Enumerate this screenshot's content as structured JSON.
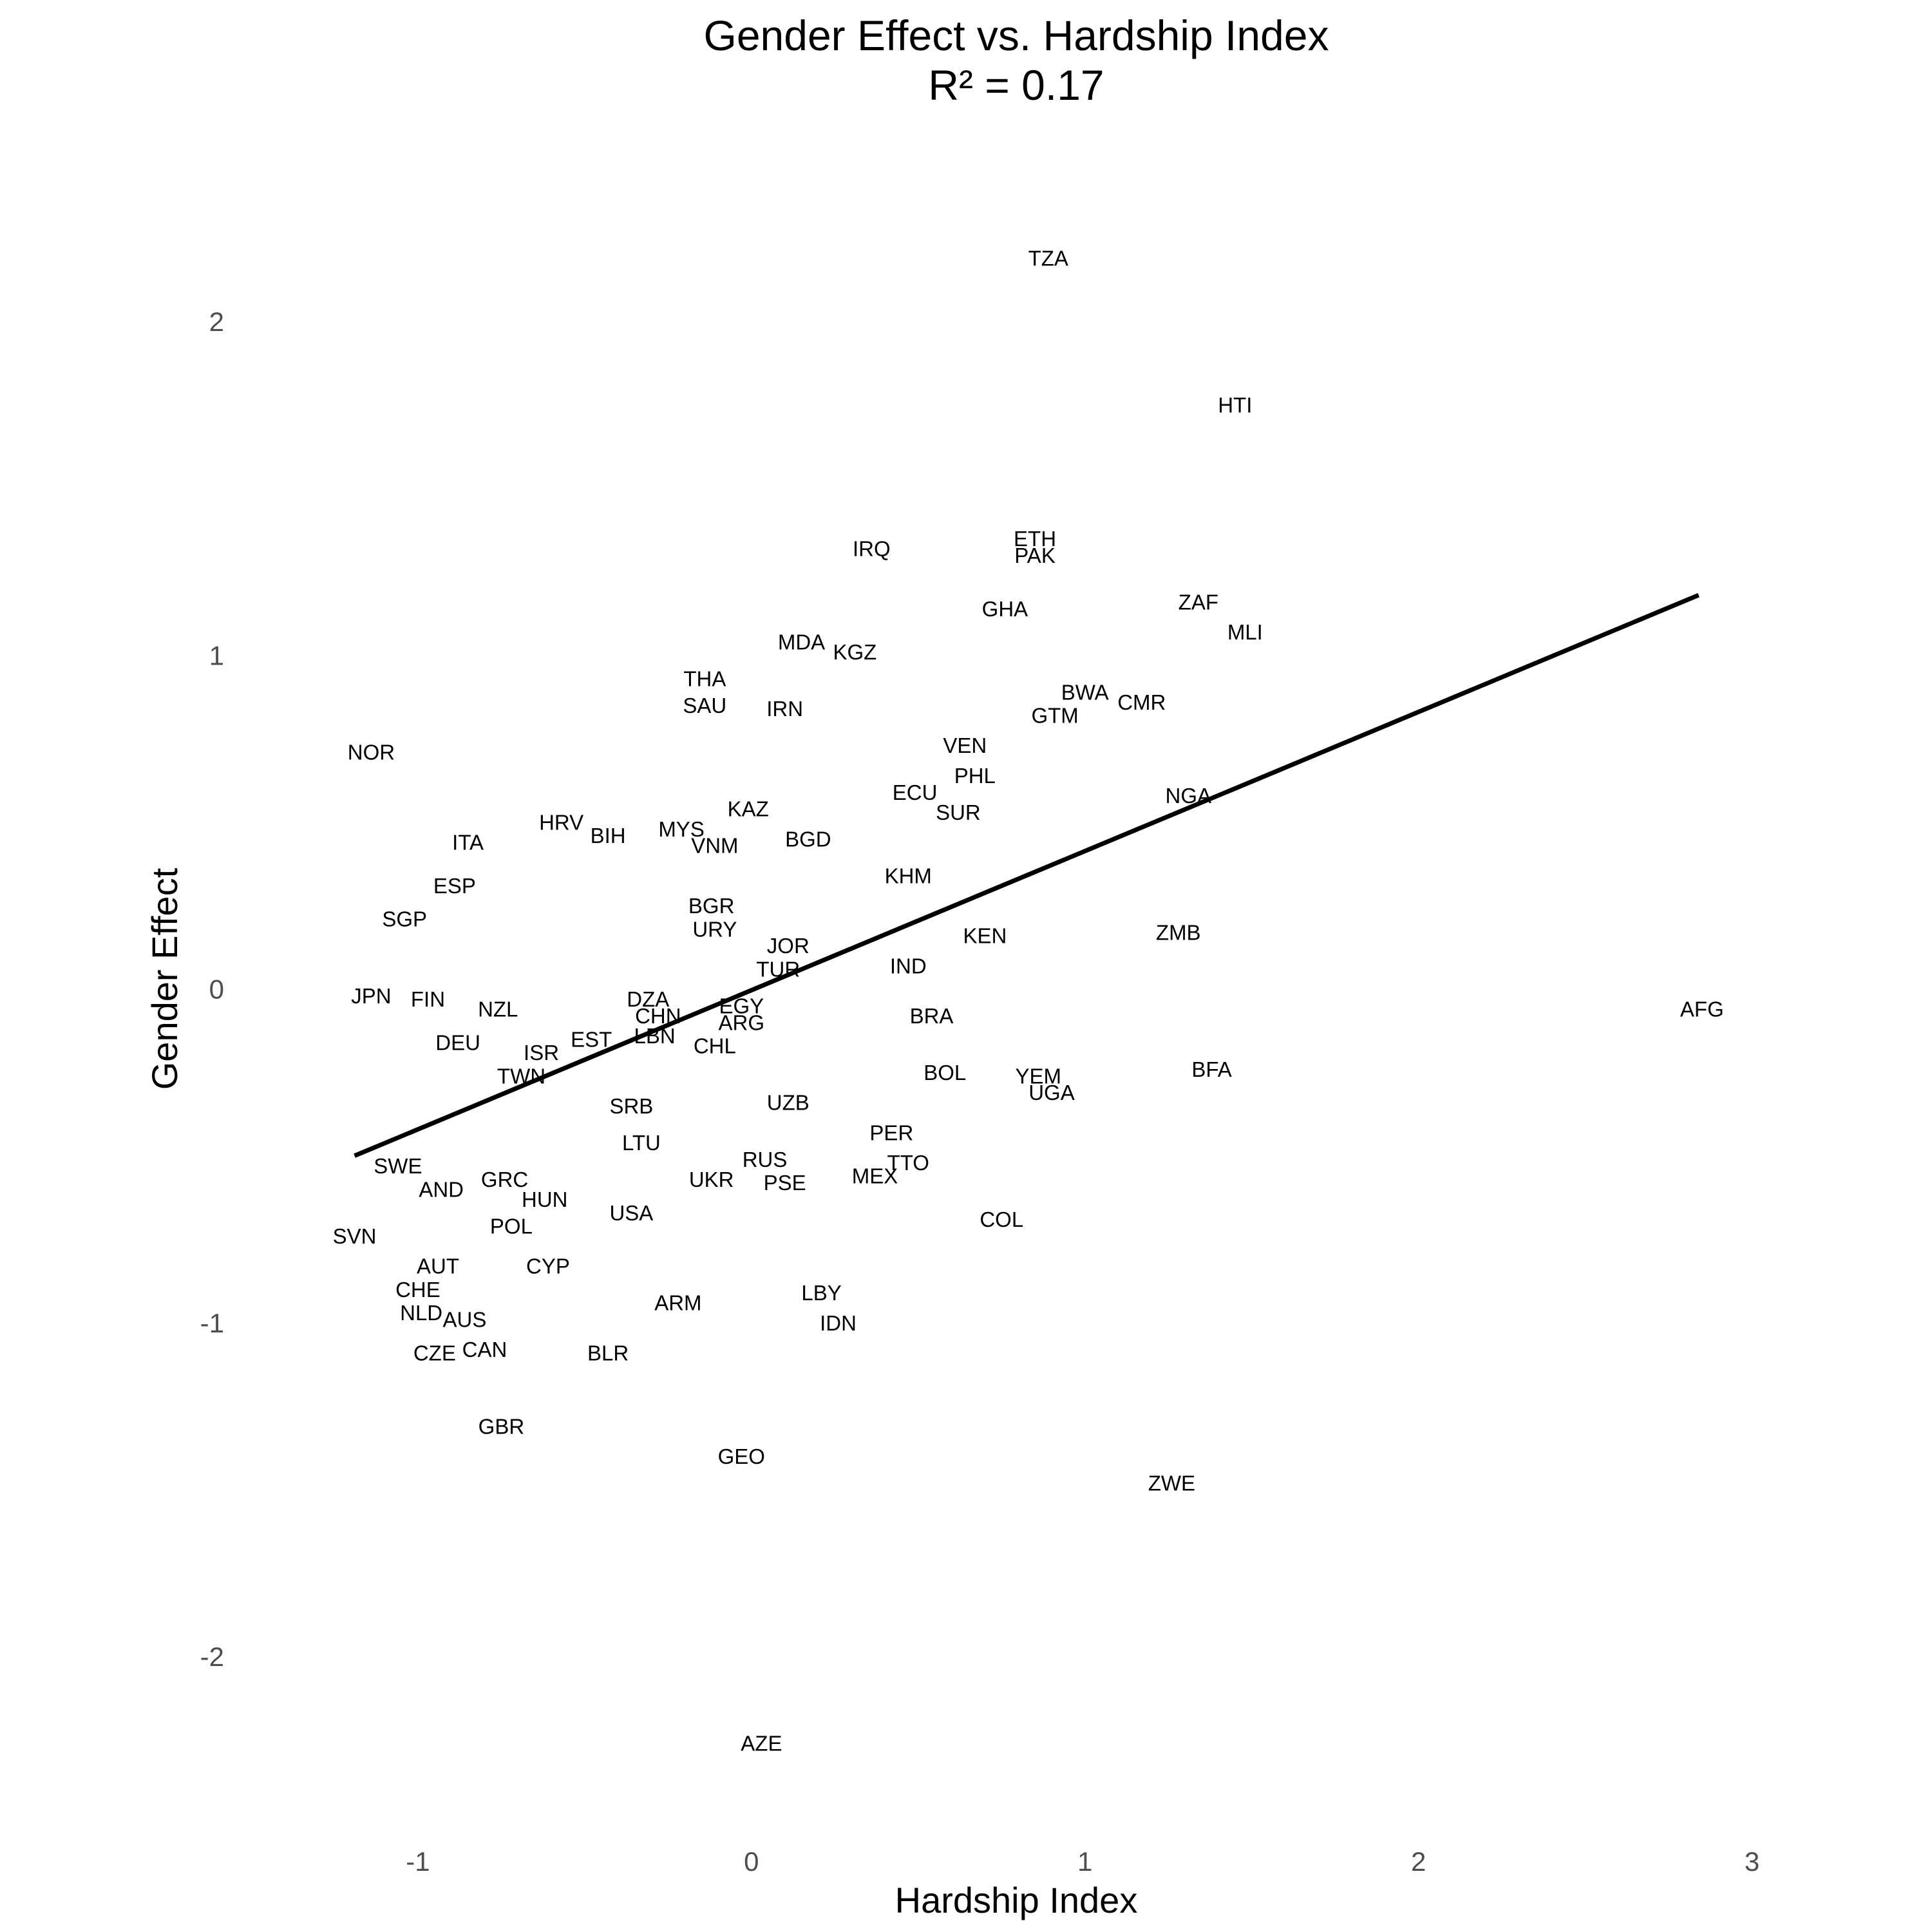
{
  "chart_data": {
    "type": "scatter",
    "title": "Gender Effect vs. Hardship Index",
    "subtitle": "R² = 0.17",
    "xlabel": "Hardship Index",
    "ylabel": "Gender Effect",
    "xlim": [
      -1.5,
      3.25
    ],
    "ylim": [
      -2.44,
      2.5
    ],
    "xticks": [
      -1,
      0,
      1,
      2,
      3
    ],
    "yticks": [
      -2,
      -1,
      0,
      1,
      2
    ],
    "grid": false,
    "fit_line": {
      "x1": -1.19,
      "y1": -0.5,
      "x2": 2.84,
      "y2": 1.18
    },
    "points": [
      {
        "label": "TZA",
        "x": 0.89,
        "y": 2.19
      },
      {
        "label": "HTI",
        "x": 1.45,
        "y": 1.75
      },
      {
        "label": "ETH",
        "x": 0.85,
        "y": 1.35
      },
      {
        "label": "PAK",
        "x": 0.85,
        "y": 1.3
      },
      {
        "label": "IRQ",
        "x": 0.36,
        "y": 1.32
      },
      {
        "label": "ZAF",
        "x": 1.34,
        "y": 1.16
      },
      {
        "label": "GHA",
        "x": 0.76,
        "y": 1.14
      },
      {
        "label": "MLI",
        "x": 1.48,
        "y": 1.07
      },
      {
        "label": "MDA",
        "x": 0.15,
        "y": 1.04
      },
      {
        "label": "KGZ",
        "x": 0.31,
        "y": 1.01
      },
      {
        "label": "THA",
        "x": -0.14,
        "y": 0.93
      },
      {
        "label": "BWA",
        "x": 1.0,
        "y": 0.89
      },
      {
        "label": "CMR",
        "x": 1.17,
        "y": 0.86
      },
      {
        "label": "SAU",
        "x": -0.14,
        "y": 0.85
      },
      {
        "label": "IRN",
        "x": 0.1,
        "y": 0.84
      },
      {
        "label": "GTM",
        "x": 0.91,
        "y": 0.82
      },
      {
        "label": "VEN",
        "x": 0.64,
        "y": 0.73
      },
      {
        "label": "NOR",
        "x": -1.14,
        "y": 0.71
      },
      {
        "label": "PHL",
        "x": 0.67,
        "y": 0.64
      },
      {
        "label": "ECU",
        "x": 0.49,
        "y": 0.59
      },
      {
        "label": "NGA",
        "x": 1.31,
        "y": 0.58
      },
      {
        "label": "KAZ",
        "x": -0.01,
        "y": 0.54
      },
      {
        "label": "SUR",
        "x": 0.62,
        "y": 0.53
      },
      {
        "label": "HRV",
        "x": -0.57,
        "y": 0.5
      },
      {
        "label": "MYS",
        "x": -0.21,
        "y": 0.48
      },
      {
        "label": "BIH",
        "x": -0.43,
        "y": 0.46
      },
      {
        "label": "BGD",
        "x": 0.17,
        "y": 0.45
      },
      {
        "label": "ITA",
        "x": -0.85,
        "y": 0.44
      },
      {
        "label": "VNM",
        "x": -0.11,
        "y": 0.43
      },
      {
        "label": "KHM",
        "x": 0.47,
        "y": 0.34
      },
      {
        "label": "ESP",
        "x": -0.89,
        "y": 0.31
      },
      {
        "label": "BGR",
        "x": -0.12,
        "y": 0.25
      },
      {
        "label": "SGP",
        "x": -1.04,
        "y": 0.21
      },
      {
        "label": "URY",
        "x": -0.11,
        "y": 0.18
      },
      {
        "label": "ZMB",
        "x": 1.28,
        "y": 0.17
      },
      {
        "label": "KEN",
        "x": 0.7,
        "y": 0.16
      },
      {
        "label": "JOR",
        "x": 0.11,
        "y": 0.13
      },
      {
        "label": "IND",
        "x": 0.47,
        "y": 0.07
      },
      {
        "label": "TUR",
        "x": 0.08,
        "y": 0.06
      },
      {
        "label": "JPN",
        "x": -1.14,
        "y": -0.02
      },
      {
        "label": "FIN",
        "x": -0.97,
        "y": -0.03
      },
      {
        "label": "DZA",
        "x": -0.31,
        "y": -0.03
      },
      {
        "label": "NZL",
        "x": -0.76,
        "y": -0.06
      },
      {
        "label": "EGY",
        "x": -0.03,
        "y": -0.05
      },
      {
        "label": "AFG",
        "x": 2.85,
        "y": -0.06
      },
      {
        "label": "CHN",
        "x": -0.28,
        "y": -0.08
      },
      {
        "label": "BRA",
        "x": 0.54,
        "y": -0.08
      },
      {
        "label": "ARG",
        "x": -0.03,
        "y": -0.1
      },
      {
        "label": "EST",
        "x": -0.48,
        "y": -0.15
      },
      {
        "label": "LBN",
        "x": -0.29,
        "y": -0.14
      },
      {
        "label": "DEU",
        "x": -0.88,
        "y": -0.16
      },
      {
        "label": "CHL",
        "x": -0.11,
        "y": -0.17
      },
      {
        "label": "ISR",
        "x": -0.63,
        "y": -0.19
      },
      {
        "label": "BOL",
        "x": 0.58,
        "y": -0.25
      },
      {
        "label": "BFA",
        "x": 1.38,
        "y": -0.24
      },
      {
        "label": "TWN",
        "x": -0.69,
        "y": -0.26
      },
      {
        "label": "YEM",
        "x": 0.86,
        "y": -0.26
      },
      {
        "label": "UGA",
        "x": 0.9,
        "y": -0.31
      },
      {
        "label": "UZB",
        "x": 0.11,
        "y": -0.34
      },
      {
        "label": "SRB",
        "x": -0.36,
        "y": -0.35
      },
      {
        "label": "PER",
        "x": 0.42,
        "y": -0.43
      },
      {
        "label": "LTU",
        "x": -0.33,
        "y": -0.46
      },
      {
        "label": "SWE",
        "x": -1.06,
        "y": -0.53
      },
      {
        "label": "RUS",
        "x": 0.04,
        "y": -0.51
      },
      {
        "label": "TTO",
        "x": 0.47,
        "y": -0.52
      },
      {
        "label": "GRC",
        "x": -0.74,
        "y": -0.57
      },
      {
        "label": "UKR",
        "x": -0.12,
        "y": -0.57
      },
      {
        "label": "MEX",
        "x": 0.37,
        "y": -0.56
      },
      {
        "label": "PSE",
        "x": 0.1,
        "y": -0.58
      },
      {
        "label": "AND",
        "x": -0.93,
        "y": -0.6
      },
      {
        "label": "HUN",
        "x": -0.62,
        "y": -0.63
      },
      {
        "label": "USA",
        "x": -0.36,
        "y": -0.67
      },
      {
        "label": "COL",
        "x": 0.75,
        "y": -0.69
      },
      {
        "label": "POL",
        "x": -0.72,
        "y": -0.71
      },
      {
        "label": "SVN",
        "x": -1.19,
        "y": -0.74
      },
      {
        "label": "AUT",
        "x": -0.94,
        "y": -0.83
      },
      {
        "label": "CYP",
        "x": -0.61,
        "y": -0.83
      },
      {
        "label": "CHE",
        "x": -1.0,
        "y": -0.9
      },
      {
        "label": "LBY",
        "x": 0.21,
        "y": -0.91
      },
      {
        "label": "ARM",
        "x": -0.22,
        "y": -0.94
      },
      {
        "label": "NLD",
        "x": -0.99,
        "y": -0.97
      },
      {
        "label": "AUS",
        "x": -0.86,
        "y": -0.99
      },
      {
        "label": "IDN",
        "x": 0.26,
        "y": -1.0
      },
      {
        "label": "CAN",
        "x": -0.8,
        "y": -1.08
      },
      {
        "label": "CZE",
        "x": -0.95,
        "y": -1.09
      },
      {
        "label": "BLR",
        "x": -0.43,
        "y": -1.09
      },
      {
        "label": "GBR",
        "x": -0.75,
        "y": -1.31
      },
      {
        "label": "GEO",
        "x": -0.03,
        "y": -1.4
      },
      {
        "label": "ZWE",
        "x": 1.26,
        "y": -1.48
      },
      {
        "label": "AZE",
        "x": 0.03,
        "y": -2.26
      }
    ]
  }
}
